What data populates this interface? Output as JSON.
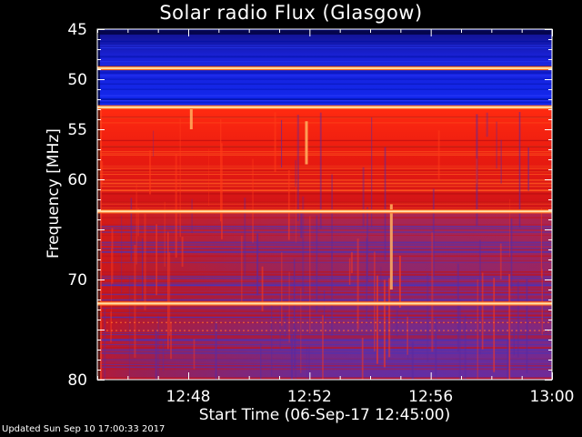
{
  "chart_data": {
    "type": "heatmap",
    "title": "Solar radio Flux (Glasgow)",
    "xlabel": "Start Time (06-Sep-17 12:45:00)",
    "ylabel": "Frequency [MHz]",
    "x_range_minutes": [
      0,
      15
    ],
    "x_start_time": "12:45",
    "x_ticks": [
      {
        "label": "12:48",
        "minute": 3
      },
      {
        "label": "12:52",
        "minute": 7
      },
      {
        "label": "12:56",
        "minute": 11
      },
      {
        "label": "13:00",
        "minute": 15
      }
    ],
    "y_range_mhz": [
      45,
      80
    ],
    "y_axis_inverted": true,
    "y_ticks": [
      {
        "label": "45",
        "value": 45
      },
      {
        "label": "50",
        "value": 50
      },
      {
        "label": "55",
        "value": 55
      },
      {
        "label": "60",
        "value": 60
      },
      {
        "label": "70",
        "value": 70
      },
      {
        "label": "80",
        "value": 80
      }
    ],
    "colormap": [
      "#000010",
      "#1e1ee6",
      "#6a3aa8",
      "#c8141e",
      "#ff3c00",
      "#ffdc9a"
    ],
    "bands": [
      {
        "range_mhz": [
          45,
          53
        ],
        "level": "low",
        "color": "#1020d8"
      },
      {
        "range_mhz": [
          53,
          63
        ],
        "level": "high",
        "color": "#e62010"
      },
      {
        "range_mhz": [
          63,
          80
        ],
        "level": "mixed",
        "color": "#8a2a8a"
      }
    ],
    "interference_lines_mhz": [
      48.9,
      52.8,
      63.2,
      72.4
    ],
    "bursts": [
      {
        "minute": 6.9,
        "freq_mhz": [
          54.2,
          58.5
        ]
      },
      {
        "minute": 3.1,
        "freq_mhz": [
          52.8,
          55.0
        ]
      },
      {
        "minute": 9.7,
        "freq_mhz": [
          62.5,
          71.0
        ]
      }
    ]
  },
  "footer": {
    "updated": "Updated Sun Sep 10 17:00:33 2017"
  }
}
